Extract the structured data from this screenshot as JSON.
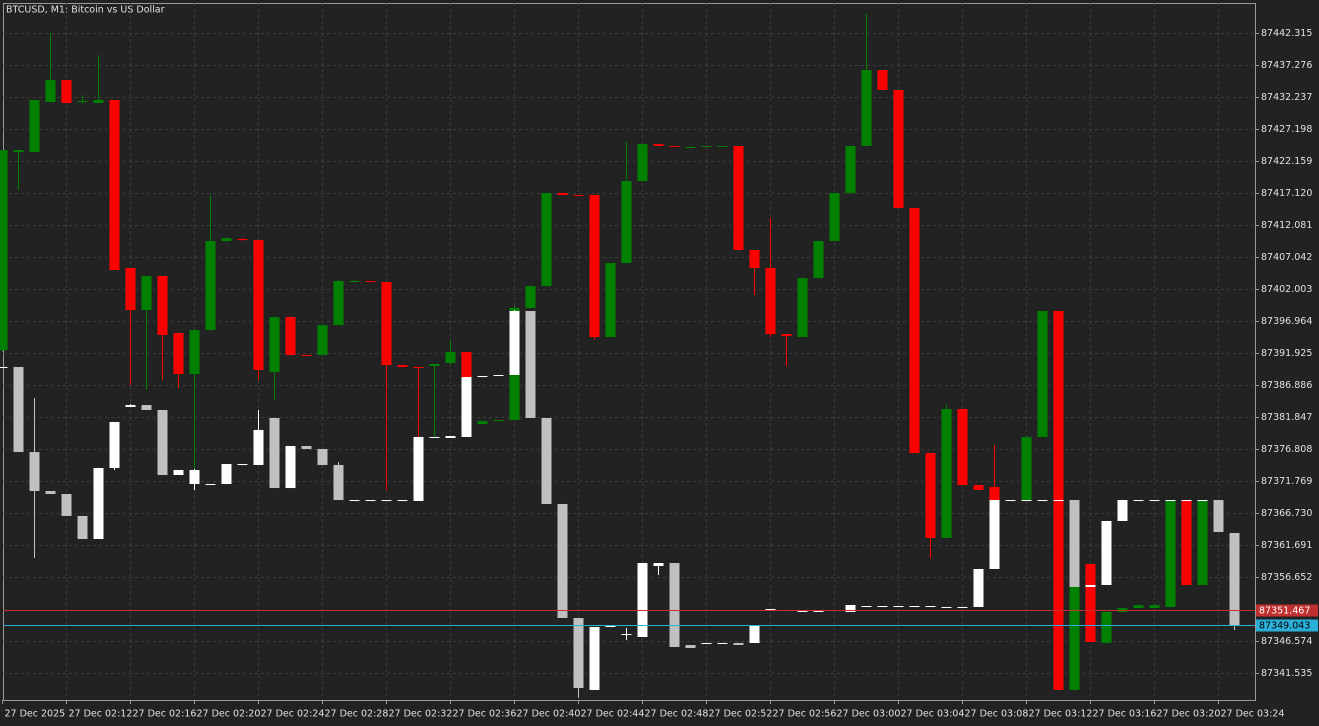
{
  "chart_data": {
    "type": "candlestick",
    "title": "BTCUSD, M1:  Bitcoin vs US Dollar",
    "categories": [
      "27 Dec 2025",
      null,
      null,
      null,
      "27 Dec 02:12",
      null,
      null,
      null,
      "27 Dec 02:16",
      null,
      null,
      null,
      "27 Dec 02:20",
      null,
      null,
      null,
      "27 Dec 02:24",
      null,
      null,
      null,
      "27 Dec 02:28",
      null,
      null,
      null,
      "27 Dec 02:32",
      null,
      null,
      null,
      "27 Dec 02:36",
      null,
      null,
      null,
      "27 Dec 02:40",
      null,
      null,
      null,
      "27 Dec 02:44",
      null,
      null,
      null,
      "27 Dec 02:48",
      null,
      null,
      null,
      "27 Dec 02:52",
      null,
      null,
      null,
      "27 Dec 02:56",
      null,
      null,
      null,
      "27 Dec 03:00",
      null,
      null,
      null,
      "27 Dec 03:04",
      null,
      null,
      null,
      "27 Dec 03:08",
      null,
      null,
      null,
      "27 Dec 03:12",
      null,
      null,
      null,
      "27 Dec 03:16",
      null,
      null,
      null,
      "27 Dec 03:20",
      null,
      null,
      null,
      "27 Dec 03:24",
      null
    ],
    "ylim": [
      87337.28,
      87447.04
    ],
    "yticks": [
      87442.315,
      87437.276,
      87432.237,
      87427.198,
      87422.159,
      {
        "value": 87417.12,
        "label": "87417.120"
      },
      87412.081,
      87407.042,
      87402.003,
      87396.964,
      87391.925,
      87386.886,
      87381.847,
      87376.808,
      87371.769,
      {
        "value": 87366.73,
        "label": "87366.730"
      },
      87361.691,
      87356.652,
      87346.574,
      87341.535
    ],
    "grid": true,
    "series": [
      {
        "up_color": "#008000",
        "down_color": "#ff0000",
        "open": [
          87392.4,
          87423.57,
          87423.57,
          87431.45,
          87434.91,
          87431.45,
          87431.29,
          87431.76,
          87405.31,
          87398.69,
          87404.05,
          87395.07,
          87388.62,
          87395.54,
          87409.56,
          87409.87,
          87409.72,
          87388.93,
          87397.59,
          87391.61,
          87391.61,
          87396.33,
          87403.26,
          87403.26,
          87403.1,
          87390.03,
          87389.72,
          87389.88,
          87390.35,
          87392.08,
          87380.74,
          87381.22,
          87381.37,
          87399.01,
          87402.47,
          87417.12,
          87416.8,
          87416.8,
          87394.44,
          87406.1,
          87419.01,
          87424.83,
          87424.52,
          87424.36,
          87424.52,
          87424.52,
          87424.52,
          87408.14,
          87405.31,
          87394.91,
          87394.44,
          87403.73,
          87409.56,
          87417.12,
          87424.52,
          87436.49,
          87433.34,
          87414.76,
          87376.18,
          87362.79,
          87383.1,
          87371.14,
          87370.82,
          87368.77,
          87368.77,
          87378.7,
          87398.54,
          87338.86,
          87358.7,
          87346.26,
          87351.14,
          87351.77,
          87351.77,
          87351.93,
          87368.77,
          87355.39,
          null,
          null
        ],
        "high": [
          87423.89,
          87423.89,
          87431.76,
          87442.31,
          87434.91,
          87432.55,
          87438.85,
          87431.76,
          87405.31,
          87404.05,
          87404.05,
          87395.07,
          87395.54,
          87416.8,
          87410.03,
          87410.03,
          87409.72,
          87397.59,
          87397.59,
          87391.61,
          87396.33,
          87403.42,
          87403.42,
          87403.26,
          87403.1,
          87390.03,
          87389.72,
          87390.19,
          87393.97,
          87392.08,
          87381.22,
          87381.37,
          87399.32,
          87402.47,
          87417.12,
          87417.12,
          87416.8,
          87416.8,
          87406.1,
          87425.15,
          87424.83,
          87424.83,
          87424.52,
          87424.52,
          87424.52,
          87424.52,
          87424.52,
          87408.14,
          87413.18,
          87394.91,
          87403.73,
          87409.56,
          87417.12,
          87424.52,
          87445.31,
          87436.49,
          87433.34,
          87414.76,
          87376.18,
          87383.73,
          87383.1,
          87371.14,
          87377.44,
          87368.77,
          87378.7,
          87398.54,
          87398.54,
          87355.39,
          87358.7,
          87351.14,
          87351.77,
          87352.24,
          87352.24,
          87368.77,
          87368.77,
          87368.77,
          null,
          null
        ],
        "low": [
          87392.08,
          87417.59,
          87423.57,
          87431.45,
          87431.29,
          87431.29,
          87431.29,
          87404.99,
          87386.88,
          87386.1,
          87387.67,
          87386.41,
          87370.35,
          87395.54,
          87409.4,
          87409.56,
          87387.67,
          87384.52,
          87391.61,
          87391.45,
          87391.61,
          87396.33,
          87403.1,
          87403.1,
          87370.35,
          87389.72,
          87369.56,
          87378.54,
          87390.03,
          87388.14,
          87380.74,
          87381.22,
          87381.37,
          87399.01,
          87402.47,
          87416.8,
          87416.65,
          87393.97,
          87394.44,
          87406.1,
          87419.01,
          87424.52,
          87424.36,
          87424.36,
          87424.52,
          87424.52,
          87408.14,
          87401.06,
          87394.44,
          87389.88,
          87394.44,
          87403.73,
          87409.56,
          87417.12,
          87424.52,
          87433.34,
          87414.76,
          87376.18,
          87359.64,
          87362.79,
          87371.14,
          87370.35,
          87368.77,
          87368.77,
          87368.77,
          87378.7,
          87338.86,
          87338.86,
          87346.41,
          87346.26,
          87351.14,
          87351.77,
          87351.77,
          87351.93,
          87355.39,
          87355.39,
          null,
          null
        ],
        "close": [
          87423.89,
          87423.89,
          87431.76,
          87434.91,
          87431.29,
          87431.61,
          87431.76,
          87404.99,
          87398.69,
          87404.05,
          87394.76,
          87388.62,
          87395.54,
          87409.56,
          87410.03,
          87409.72,
          87389.25,
          87397.59,
          87391.61,
          87391.45,
          87396.33,
          87403.26,
          87403.26,
          87403.1,
          87390.03,
          87389.72,
          87389.56,
          87390.19,
          87392.08,
          87388.14,
          87381.22,
          87381.37,
          87399.01,
          87402.47,
          87417.12,
          87416.8,
          87416.65,
          87394.44,
          87406.1,
          87419.01,
          87424.83,
          87424.52,
          87424.36,
          87424.36,
          87424.52,
          87424.52,
          87408.14,
          87405.31,
          87394.91,
          87394.6,
          87403.73,
          87409.56,
          87417.12,
          87424.52,
          87436.49,
          87433.34,
          87414.76,
          87376.18,
          87362.79,
          87383.1,
          87371.14,
          87370.35,
          87368.77,
          87368.77,
          87378.7,
          87398.54,
          87338.86,
          87355.39,
          87346.41,
          87351.14,
          87351.77,
          87352.24,
          87352.24,
          87368.77,
          87355.39,
          87368.77,
          null,
          null
        ]
      },
      {
        "up_color": "#ffffff",
        "down_color": "#c0c0c0",
        "open": [
          87389.72,
          87389.72,
          87376.33,
          87370.19,
          87369.72,
          87366.26,
          87362.63,
          87373.81,
          87383.42,
          87383.73,
          87382.95,
          87372.71,
          87371.29,
          87371.29,
          87371.29,
          87374.29,
          87374.29,
          87381.69,
          87370.66,
          87377.28,
          87376.81,
          87374.29,
          87368.77,
          87368.77,
          87368.77,
          87368.62,
          87368.62,
          87378.7,
          87378.54,
          87378.7,
          87388.14,
          87388.3,
          87388.46,
          87398.54,
          87381.69,
          87368.15,
          87350.19,
          87338.86,
          87348.78,
          87347.67,
          87347.2,
          87358.38,
          87358.85,
          87345.94,
          87346.26,
          87346.26,
          87346.26,
          87346.26,
          87351.3,
          87351.45,
          87351.3,
          87351.3,
          87351.45,
          87351.14,
          87352.08,
          87352.08,
          87352.08,
          87352.08,
          87352.08,
          87351.93,
          87351.93,
          87351.93,
          87357.91,
          87368.77,
          87368.77,
          87368.77,
          87368.77,
          87368.77,
          87355.08,
          87355.39,
          87365.47,
          87368.77,
          87368.77,
          87368.77,
          87368.77,
          87368.77,
          87368.77,
          87363.58
        ],
        "high": [
          87389.72,
          87389.72,
          87384.84,
          87370.19,
          87369.72,
          87366.26,
          87373.81,
          87381.06,
          87383.89,
          87383.73,
          87382.95,
          87373.5,
          87373.66,
          87371.29,
          87374.44,
          87374.44,
          87382.95,
          87381.69,
          87377.28,
          87377.28,
          87376.81,
          87374.76,
          87368.77,
          87368.77,
          87368.77,
          87368.77,
          87378.7,
          87378.7,
          87378.85,
          87388.14,
          87388.3,
          87388.46,
          87398.69,
          87398.54,
          87381.69,
          87368.15,
          87350.19,
          87348.78,
          87348.93,
          87348.62,
          87358.85,
          87358.85,
          87358.85,
          87345.94,
          87346.26,
          87346.26,
          87346.26,
          87349.09,
          87351.61,
          87351.45,
          87351.3,
          87351.3,
          87351.45,
          87352.24,
          87352.08,
          87352.08,
          87352.08,
          87352.08,
          87352.08,
          87351.93,
          87351.93,
          87357.91,
          87368.77,
          87368.77,
          87368.77,
          87368.77,
          87368.77,
          87368.77,
          87355.39,
          87365.47,
          87368.77,
          87368.77,
          87368.77,
          87368.77,
          87368.77,
          87368.77,
          87368.77,
          87363.58
        ],
        "low": [
          87389.72,
          87376.33,
          87359.64,
          87369.72,
          87366.26,
          87362.63,
          87362.63,
          87373.5,
          87383.42,
          87382.95,
          87372.71,
          87372.71,
          87370.35,
          87371.29,
          87371.29,
          87374.29,
          87374.29,
          87370.66,
          87370.66,
          87376.81,
          87374.29,
          87368.77,
          87368.77,
          87368.77,
          87368.77,
          87368.62,
          87368.62,
          87378.7,
          87378.54,
          87378.7,
          87388.14,
          87388.3,
          87388.46,
          87381.69,
          87368.15,
          87350.19,
          87337.6,
          87338.86,
          87348.78,
          87346.73,
          87347.2,
          87356.96,
          87345.63,
          87345.47,
          87346.26,
          87346.26,
          87345.94,
          87346.26,
          87351.3,
          87351.45,
          87351.3,
          87351.3,
          87351.45,
          87351.14,
          87352.08,
          87352.08,
          87352.08,
          87352.08,
          87352.08,
          87351.93,
          87351.93,
          87351.93,
          87357.91,
          87368.77,
          87368.77,
          87368.77,
          87368.77,
          87355.08,
          87355.08,
          87355.39,
          87365.47,
          87368.77,
          87368.77,
          87368.77,
          87368.77,
          87368.77,
          87363.74,
          87348.3
        ],
        "close": [
          87389.72,
          87376.33,
          87370.19,
          87369.72,
          87366.26,
          87362.63,
          87373.81,
          87381.06,
          87383.73,
          87382.95,
          87372.71,
          87373.5,
          87373.5,
          87371.29,
          87374.44,
          87374.44,
          87379.8,
          87370.66,
          87377.28,
          87376.81,
          87374.29,
          87368.77,
          87368.77,
          87368.77,
          87368.77,
          87368.77,
          87378.7,
          87378.7,
          87378.85,
          87388.14,
          87388.3,
          87388.46,
          87398.54,
          87381.69,
          87368.15,
          87350.19,
          87339.17,
          87348.78,
          87348.93,
          87347.67,
          87358.85,
          87358.85,
          87345.63,
          87345.47,
          87346.26,
          87346.26,
          87345.94,
          87349.09,
          87351.61,
          87351.45,
          87351.3,
          87351.3,
          87351.45,
          87352.24,
          87352.08,
          87352.08,
          87352.08,
          87352.08,
          87352.08,
          87351.93,
          87351.93,
          87357.91,
          87368.77,
          87368.77,
          87368.77,
          87368.77,
          87368.77,
          87355.08,
          87355.39,
          87365.47,
          87368.77,
          87368.77,
          87368.77,
          87368.77,
          87368.77,
          87368.77,
          87363.74,
          87349.09
        ]
      }
    ],
    "price_lines": [
      {
        "value": 87351.467,
        "color": "#c03030",
        "text_color": "#ffffff"
      },
      {
        "value": 87349.043,
        "color": "#2ab0d8",
        "text_color": "#000000"
      }
    ]
  }
}
